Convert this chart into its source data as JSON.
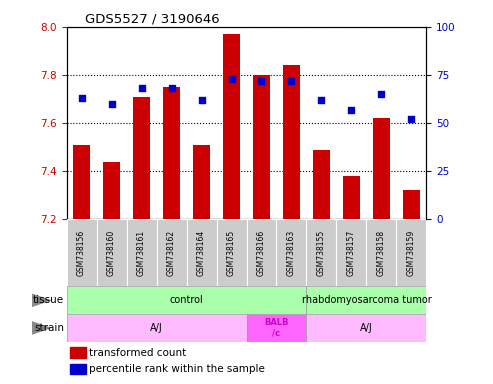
{
  "title": "GDS5527 / 3190646",
  "samples": [
    "GSM738156",
    "GSM738160",
    "GSM738161",
    "GSM738162",
    "GSM738164",
    "GSM738165",
    "GSM738166",
    "GSM738163",
    "GSM738155",
    "GSM738157",
    "GSM738158",
    "GSM738159"
  ],
  "bar_values": [
    7.51,
    7.44,
    7.71,
    7.75,
    7.51,
    7.97,
    7.8,
    7.84,
    7.49,
    7.38,
    7.62,
    7.32
  ],
  "dot_values": [
    63,
    60,
    68,
    68,
    62,
    73,
    72,
    72,
    62,
    57,
    65,
    52
  ],
  "bar_bottom": 7.2,
  "ylim_left": [
    7.2,
    8.0
  ],
  "ylim_right": [
    0,
    100
  ],
  "yticks_left": [
    7.2,
    7.4,
    7.6,
    7.8,
    8.0
  ],
  "yticks_right": [
    0,
    25,
    50,
    75,
    100
  ],
  "bar_color": "#cc0000",
  "dot_color": "#0000cc",
  "tissue_groups": [
    {
      "label": "control",
      "start": 0,
      "end": 8,
      "color": "#aaffaa"
    },
    {
      "label": "rhabdomyosarcoma tumor",
      "start": 8,
      "end": 12,
      "color": "#aaffaa"
    }
  ],
  "strain_groups": [
    {
      "label": "A/J",
      "start": 0,
      "end": 6,
      "color": "#ffbbff"
    },
    {
      "label": "BALB\n/c",
      "start": 6,
      "end": 8,
      "color": "#ff66ff"
    },
    {
      "label": "A/J",
      "start": 8,
      "end": 12,
      "color": "#ffbbff"
    }
  ],
  "tick_color_left": "#cc0000",
  "tick_color_right": "#0000cc",
  "sample_box_color": "#cccccc",
  "legend_bar_label": "transformed count",
  "legend_dot_label": "percentile rank within the sample"
}
